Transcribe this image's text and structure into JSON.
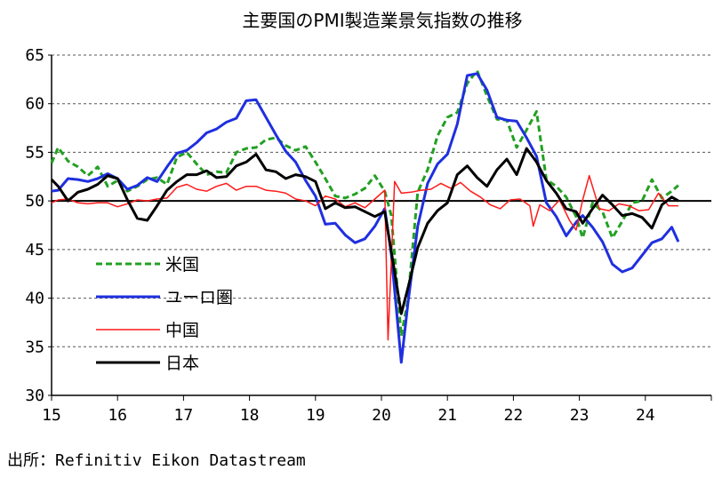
{
  "chart_data": {
    "type": "line",
    "title": "主要国のPMI製造業景気指数の推移",
    "source": "出所：Refinitiv Eikon Datastream",
    "xlabel": "",
    "ylabel": "",
    "ylim": [
      30,
      65
    ],
    "yticks": [
      30,
      35,
      40,
      45,
      50,
      55,
      60,
      65
    ],
    "xlim": [
      2015,
      2025
    ],
    "xticks": [
      15,
      16,
      17,
      18,
      19,
      20,
      21,
      22,
      23,
      24
    ],
    "reference_line": 50,
    "grid": "dashed horizontal",
    "legend_position": "lower-left",
    "series": [
      {
        "name": "米国",
        "color": "#22a022",
        "style": "dashed",
        "x": [
          2015.0,
          2015.1,
          2015.25,
          2015.4,
          2015.55,
          2015.7,
          2015.85,
          2016.0,
          2016.15,
          2016.3,
          2016.45,
          2016.6,
          2016.75,
          2016.9,
          2017.05,
          2017.2,
          2017.35,
          2017.5,
          2017.65,
          2017.8,
          2017.95,
          2018.1,
          2018.25,
          2018.4,
          2018.55,
          2018.7,
          2018.85,
          2019.0,
          2019.15,
          2019.3,
          2019.45,
          2019.6,
          2019.75,
          2019.9,
          2020.05,
          2020.15,
          2020.3,
          2020.4,
          2020.55,
          2020.7,
          2020.85,
          2021.0,
          2021.15,
          2021.3,
          2021.45,
          2021.6,
          2021.75,
          2021.9,
          2022.05,
          2022.2,
          2022.35,
          2022.5,
          2022.65,
          2022.8,
          2022.95,
          2023.05,
          2023.2,
          2023.35,
          2023.5,
          2023.65,
          2023.8,
          2023.95,
          2024.1,
          2024.25,
          2024.4,
          2024.5
        ],
        "values": [
          53.9,
          55.5,
          54.1,
          53.5,
          52.6,
          53.5,
          51.5,
          52.1,
          51.0,
          51.5,
          52.2,
          52.4,
          51.7,
          54.5,
          55.0,
          53.8,
          52.7,
          53.0,
          52.9,
          55.0,
          55.4,
          55.5,
          56.3,
          56.5,
          55.7,
          55.2,
          55.6,
          54.0,
          52.3,
          50.5,
          50.3,
          50.7,
          51.3,
          52.6,
          51.0,
          48.5,
          36.1,
          39.8,
          50.9,
          53.2,
          56.7,
          58.6,
          59.1,
          62.1,
          63.4,
          60.8,
          58.4,
          58.3,
          55.5,
          57.3,
          59.2,
          52.2,
          51.5,
          50.4,
          48.4,
          46.2,
          49.8,
          48.9,
          46.2,
          47.9,
          49.8,
          50.0,
          52.2,
          50.3,
          51.0,
          51.6
        ]
      },
      {
        "name": "ユーロ圏",
        "color": "#1f2fe0",
        "style": "solid",
        "x": [
          2015.0,
          2015.1,
          2015.25,
          2015.4,
          2015.55,
          2015.7,
          2015.85,
          2016.0,
          2016.15,
          2016.3,
          2016.45,
          2016.6,
          2016.75,
          2016.9,
          2017.05,
          2017.2,
          2017.35,
          2017.5,
          2017.65,
          2017.8,
          2017.95,
          2018.1,
          2018.25,
          2018.4,
          2018.55,
          2018.7,
          2018.85,
          2019.0,
          2019.15,
          2019.3,
          2019.45,
          2019.6,
          2019.75,
          2019.9,
          2020.05,
          2020.15,
          2020.3,
          2020.4,
          2020.55,
          2020.7,
          2020.85,
          2021.0,
          2021.15,
          2021.3,
          2021.45,
          2021.6,
          2021.75,
          2021.9,
          2022.05,
          2022.2,
          2022.35,
          2022.5,
          2022.65,
          2022.8,
          2022.95,
          2023.05,
          2023.2,
          2023.35,
          2023.5,
          2023.65,
          2023.8,
          2023.95,
          2024.1,
          2024.25,
          2024.4,
          2024.5
        ],
        "values": [
          51.0,
          51.1,
          52.3,
          52.2,
          52.0,
          52.3,
          52.8,
          52.3,
          51.2,
          51.6,
          52.4,
          52.0,
          53.5,
          54.9,
          55.2,
          56.0,
          57.0,
          57.4,
          58.1,
          58.5,
          60.3,
          60.4,
          58.6,
          56.8,
          55.1,
          54.0,
          52.1,
          50.5,
          47.6,
          47.7,
          46.5,
          45.7,
          46.1,
          47.4,
          49.2,
          44.5,
          33.4,
          39.4,
          47.4,
          51.8,
          53.8,
          54.8,
          57.9,
          62.9,
          63.1,
          61.4,
          58.6,
          58.3,
          58.2,
          56.5,
          54.6,
          49.8,
          48.4,
          46.4,
          47.8,
          48.5,
          47.3,
          45.8,
          43.5,
          42.7,
          43.1,
          44.4,
          45.7,
          46.1,
          47.3,
          45.8
        ]
      },
      {
        "name": "中国",
        "color": "#ff1a1a",
        "style": "solid",
        "x": [
          2015.0,
          2015.1,
          2015.25,
          2015.4,
          2015.55,
          2015.7,
          2015.85,
          2016.0,
          2016.15,
          2016.3,
          2016.45,
          2016.6,
          2016.75,
          2016.9,
          2017.05,
          2017.2,
          2017.35,
          2017.5,
          2017.65,
          2017.8,
          2017.95,
          2018.1,
          2018.25,
          2018.4,
          2018.55,
          2018.7,
          2018.85,
          2019.0,
          2019.15,
          2019.3,
          2019.45,
          2019.6,
          2019.75,
          2019.9,
          2020.05,
          2020.1,
          2020.2,
          2020.3,
          2020.45,
          2020.6,
          2020.75,
          2020.9,
          2021.05,
          2021.2,
          2021.35,
          2021.5,
          2021.65,
          2021.8,
          2021.95,
          2022.1,
          2022.25,
          2022.3,
          2022.4,
          2022.55,
          2022.7,
          2022.85,
          2022.95,
          2023.05,
          2023.15,
          2023.3,
          2023.45,
          2023.6,
          2023.75,
          2023.9,
          2024.05,
          2024.2,
          2024.35,
          2024.5
        ],
        "values": [
          49.8,
          50.1,
          50.2,
          49.8,
          49.7,
          49.8,
          49.8,
          49.4,
          49.7,
          50.1,
          50.0,
          50.2,
          50.3,
          51.4,
          51.7,
          51.2,
          51.0,
          51.5,
          51.8,
          51.1,
          51.5,
          51.5,
          51.1,
          51.0,
          50.8,
          50.2,
          50.0,
          49.5,
          50.5,
          50.2,
          49.4,
          49.8,
          49.3,
          50.2,
          51.1,
          35.7,
          52.0,
          50.8,
          50.9,
          51.1,
          51.2,
          51.8,
          51.3,
          51.9,
          51.0,
          50.4,
          49.6,
          49.2,
          50.1,
          50.2,
          49.5,
          47.4,
          49.6,
          49.0,
          50.1,
          48.0,
          47.0,
          50.1,
          52.6,
          49.2,
          49.0,
          49.7,
          49.5,
          49.0,
          49.1,
          50.8,
          49.5,
          49.5
        ]
      },
      {
        "name": "日本",
        "color": "#000000",
        "style": "solid",
        "x": [
          2015.0,
          2015.1,
          2015.25,
          2015.4,
          2015.55,
          2015.7,
          2015.85,
          2016.0,
          2016.15,
          2016.3,
          2016.45,
          2016.6,
          2016.75,
          2016.9,
          2017.05,
          2017.2,
          2017.35,
          2017.5,
          2017.65,
          2017.8,
          2017.95,
          2018.1,
          2018.25,
          2018.4,
          2018.55,
          2018.7,
          2018.85,
          2019.0,
          2019.15,
          2019.3,
          2019.45,
          2019.6,
          2019.75,
          2019.9,
          2020.05,
          2020.15,
          2020.3,
          2020.4,
          2020.55,
          2020.7,
          2020.85,
          2021.0,
          2021.15,
          2021.3,
          2021.45,
          2021.6,
          2021.75,
          2021.9,
          2022.05,
          2022.2,
          2022.35,
          2022.5,
          2022.65,
          2022.8,
          2022.95,
          2023.05,
          2023.2,
          2023.35,
          2023.5,
          2023.65,
          2023.8,
          2023.95,
          2024.1,
          2024.25,
          2024.4,
          2024.5
        ],
        "values": [
          52.2,
          51.5,
          50.0,
          50.9,
          51.2,
          51.7,
          52.6,
          52.3,
          50.1,
          48.2,
          48.0,
          49.5,
          51.1,
          52.0,
          52.7,
          52.7,
          53.1,
          52.4,
          52.5,
          53.6,
          54.0,
          54.8,
          53.2,
          53.0,
          52.3,
          52.7,
          52.5,
          52.0,
          49.2,
          49.8,
          49.3,
          49.4,
          48.9,
          48.4,
          48.9,
          44.8,
          38.4,
          41.0,
          45.2,
          47.7,
          49.0,
          49.8,
          52.7,
          53.6,
          52.4,
          51.5,
          53.2,
          54.3,
          52.7,
          55.4,
          54.0,
          52.1,
          50.8,
          49.2,
          48.9,
          47.7,
          49.2,
          50.6,
          49.6,
          48.5,
          48.7,
          48.3,
          47.2,
          49.6,
          50.4,
          50.0
        ]
      }
    ]
  }
}
